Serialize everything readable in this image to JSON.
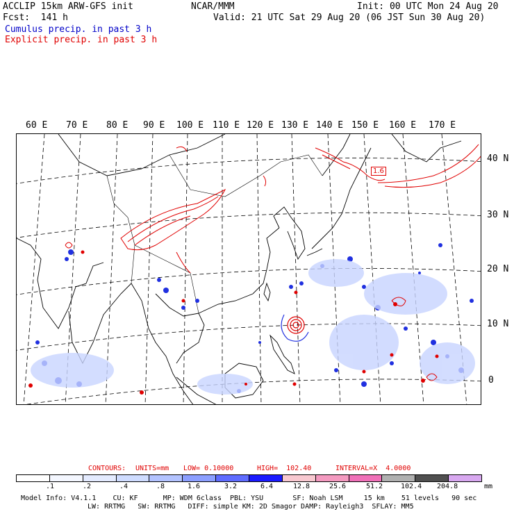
{
  "header": {
    "model": "ACCLIP 15km ARW-GFS init",
    "center": "NCAR/MMM",
    "init": "Init: 00 UTC Mon 24 Aug 20",
    "fcst": "Fcst:  141 h",
    "valid": "Valid: 21 UTC Sat 29 Aug 20 (06 JST Sun 30 Aug 20)",
    "field1": "Cumulus precip. in past 3 h",
    "field2": "Explicit precip. in past 3 h"
  },
  "map": {
    "lon_labels": [
      "60 E",
      "70 E",
      "80 E",
      "90 E",
      "100 E",
      "110 E",
      "120 E",
      "130 E",
      "140 E",
      "150 E",
      "160 E",
      "170 E"
    ],
    "lat_labels": [
      "40 N",
      "30 N",
      "20 N",
      "10 N",
      "0"
    ],
    "annotation": "1.6",
    "colors": {
      "cumulus": "#2030e0",
      "explicit": "#e00000",
      "coast": "#000000"
    }
  },
  "contours": {
    "label": "CONTOURS:",
    "units": "UNITS=mm",
    "low": "LOW= 0.10000",
    "high": "HIGH=  102.40",
    "interval": "INTERVAL=X  4.0000"
  },
  "colorbar": {
    "labels": [
      ".1",
      ".2",
      ".4",
      ".8",
      "1.6",
      "3.2",
      "6.4",
      "12.8",
      "25.6",
      "51.2",
      "102.4",
      "204.8"
    ],
    "unit": "mm",
    "colors": [
      "#ffffff",
      "#f4f7ff",
      "#e4ebff",
      "#cfdcff",
      "#b3c3ff",
      "#8c9fff",
      "#5f6cff",
      "#1a1aff",
      "#f8c8d0",
      "#f49ac0",
      "#f070b8",
      "#b0b0b0",
      "#505050",
      "#d8a8f0"
    ]
  },
  "footer": {
    "line1": "Model Info: V4.1.1    CU: KF      MP: WDM 6class  PBL: YSU       SF: Noah LSM     15 km    51 levels   90 sec",
    "line2": "LW: RRTMG   SW: RRTMG   DIFF: simple KM: 2D Smagor DAMP: Rayleigh3  SFLAY: MM5"
  }
}
